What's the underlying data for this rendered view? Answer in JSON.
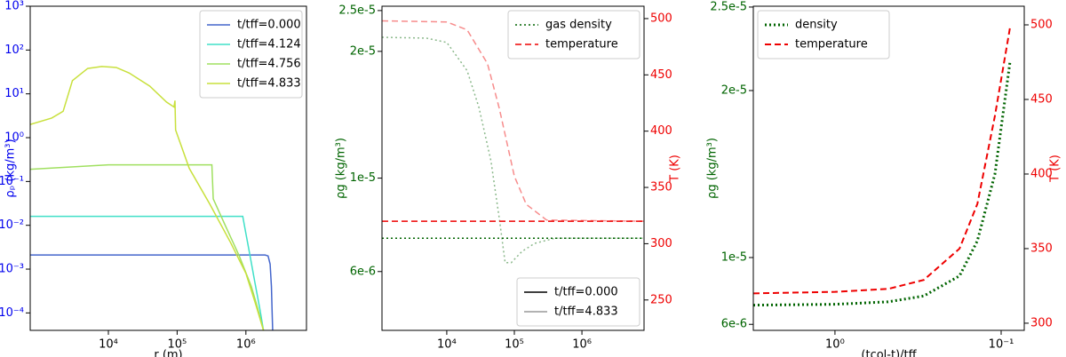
{
  "chart_data": [
    {
      "type": "line",
      "xlabel": "r (m)",
      "ylabel": "ρₚ (kg/m³)",
      "xlog": true,
      "ylog": true,
      "xlim": [
        730,
        7600000
      ],
      "ylim": [
        4e-05,
        1000
      ],
      "xticks": [
        {
          "value": 10000,
          "label": "10⁴"
        },
        {
          "value": 100000,
          "label": "10⁵"
        },
        {
          "value": 1000000,
          "label": "10⁶"
        }
      ],
      "yticks": [
        {
          "value": 0.0001,
          "label": "10⁻⁴"
        },
        {
          "value": 0.001,
          "label": "10⁻³"
        },
        {
          "value": 0.01,
          "label": "10⁻²"
        },
        {
          "value": 0.1,
          "label": "10⁻¹"
        },
        {
          "value": 1,
          "label": "10⁰"
        },
        {
          "value": 10,
          "label": "10¹"
        },
        {
          "value": 100,
          "label": "10²"
        },
        {
          "value": 1000,
          "label": "10³"
        }
      ],
      "ycolor": "#0000ee",
      "legend_loc": "upper right",
      "series": [
        {
          "name": "t/tff=0.000",
          "color": "#4466cc",
          "dash": "solid",
          "x": [
            730,
            1900000,
            2100000,
            2250000,
            2350000,
            2400000,
            2450000
          ],
          "values": [
            0.0021,
            0.0021,
            0.002,
            0.0013,
            0.0004,
            0.00012,
            4e-05
          ]
        },
        {
          "name": "t/tff=4.124",
          "color": "#40e0c8",
          "dash": "solid",
          "x": [
            730,
            900000,
            950000,
            1150000,
            1350000,
            1600000,
            1800000
          ],
          "values": [
            0.016,
            0.016,
            0.01,
            0.002,
            0.0005,
            0.00012,
            4e-05
          ]
        },
        {
          "name": "t/tff=4.756",
          "color": "#a0e060",
          "dash": "solid",
          "x": [
            730,
            10000,
            320000,
            335000,
            500000,
            800000,
            1200000,
            1500000,
            1800000
          ],
          "values": [
            0.19,
            0.24,
            0.24,
            0.04,
            0.01,
            0.002,
            0.0004,
            0.00012,
            4e-05
          ]
        },
        {
          "name": "t/tff=4.833",
          "color": "#c8e03c",
          "dash": "solid",
          "x": [
            730,
            1500,
            2200,
            3000,
            5000,
            8000,
            13000,
            20000,
            40000,
            70000,
            90000,
            93000,
            95000,
            150000,
            300000,
            600000,
            1000000,
            1400000,
            1800000
          ],
          "values": [
            2,
            2.8,
            4,
            20,
            38,
            42,
            40,
            30,
            15,
            6.5,
            5,
            7,
            1.5,
            0.2,
            0.03,
            0.004,
            0.0008,
            0.00015,
            4e-05
          ]
        }
      ]
    },
    {
      "type": "line",
      "ylabel": "ρg (kg/m³)",
      "y2label": "T (K)",
      "xlog": true,
      "ylog": true,
      "xlim": [
        1100,
        8300000
      ],
      "ylim": [
        4.35e-06,
        2.56e-05
      ],
      "y2lim": [
        223,
        511
      ],
      "xticks": [
        {
          "value": 10000,
          "label": "10⁴"
        },
        {
          "value": 100000,
          "label": "10⁵"
        },
        {
          "value": 1000000,
          "label": "10⁶"
        }
      ],
      "yticks": [
        {
          "value": 6e-06,
          "label": "6e-6"
        },
        {
          "value": 1e-05,
          "label": "1e-5"
        },
        {
          "value": 2e-05,
          "label": "2e-5"
        },
        {
          "value": 2.5e-05,
          "label": "2.5e-5"
        }
      ],
      "y2ticks": [
        250,
        300,
        350,
        400,
        450,
        500
      ],
      "ycolor": "#006400",
      "y2color": "#ee0000",
      "series": [
        {
          "color": "#006400",
          "dash": "dotted",
          "opacity": 1,
          "x": [
            1100,
            8300000
          ],
          "values": [
            7.2e-06,
            7.2e-06
          ]
        },
        {
          "color": "#006400",
          "dash": "dotted",
          "opacity": 0.45,
          "x": [
            1100,
            5000,
            10000,
            20000,
            30000,
            45000,
            60000,
            73000,
            90000,
            130000,
            200000,
            400000,
            8300000
          ],
          "values": [
            2.16e-05,
            2.15e-05,
            2.1e-05,
            1.8e-05,
            1.47e-05,
            1.1e-05,
            8e-06,
            6.3e-06,
            6.3e-06,
            6.7e-06,
            7e-06,
            7.2e-06,
            7.2e-06
          ]
        },
        {
          "color": "#ee0000",
          "dash": "dashed",
          "opacity": 1,
          "axis": "y2",
          "x": [
            1100,
            8300000
          ],
          "values": [
            320,
            320
          ]
        },
        {
          "color": "#ee0000",
          "dash": "dashed",
          "opacity": 0.45,
          "axis": "y2",
          "x": [
            1100,
            10000,
            20000,
            40000,
            60000,
            100000,
            150000,
            300000,
            8300000
          ],
          "values": [
            498,
            497,
            490,
            460,
            420,
            360,
            335,
            321,
            320
          ]
        }
      ],
      "legends": [
        {
          "loc": "upper right",
          "entries": [
            {
              "name": "gas density",
              "color": "#006400",
              "dash": "dotted"
            },
            {
              "name": "temperature",
              "color": "#ee0000",
              "dash": "dashed"
            }
          ]
        },
        {
          "loc": "lower right",
          "entries": [
            {
              "name": "t/tff=0.000",
              "color": "#000000",
              "dash": "solid"
            },
            {
              "name": "t/tff=4.833",
              "color": "#999999",
              "dash": "solid"
            }
          ]
        }
      ]
    },
    {
      "type": "line",
      "xlabel": "(tcol-t)/tff",
      "ylabel": "ρg (kg/m³)",
      "y2label": "T (K)",
      "xlog": true,
      "ylog": false,
      "xlim": [
        3.1,
        0.0726
      ],
      "ylim": [
        5.64e-06,
        2.505e-05
      ],
      "y2lim": [
        295.2,
        512.5
      ],
      "xticks": [
        {
          "value": 1,
          "label": "10⁰"
        },
        {
          "value": 0.1,
          "label": "10⁻¹"
        }
      ],
      "yticks": [
        {
          "value": 6e-06,
          "label": "6e-6"
        },
        {
          "value": 1e-05,
          "label": "1e-5"
        },
        {
          "value": 2e-05,
          "label": "2e-5"
        },
        {
          "value": 2.5e-05,
          "label": "2.5e-5"
        }
      ],
      "y2ticks": [
        300,
        350,
        400,
        450,
        500
      ],
      "ycolor": "#006400",
      "y2color": "#ee0000",
      "legend_loc": "upper left",
      "series": [
        {
          "name": "density",
          "color": "#006400",
          "dash": "dotted",
          "width": 3,
          "x": [
            3.1,
            1,
            0.478,
            0.292,
            0.178,
            0.139,
            0.109,
            0.0885
          ],
          "values": [
            7.15e-06,
            7.2e-06,
            7.35e-06,
            7.7e-06,
            8.9e-06,
            1.1e-05,
            1.5e-05,
            2.17e-05
          ]
        },
        {
          "name": "temperature",
          "color": "#ee0000",
          "dash": "dashed",
          "width": 2,
          "axis": "y2",
          "x": [
            3.1,
            1,
            0.478,
            0.292,
            0.178,
            0.139,
            0.109,
            0.0885
          ],
          "values": [
            320,
            321,
            323,
            329,
            350,
            380,
            439,
            498
          ]
        }
      ]
    }
  ]
}
